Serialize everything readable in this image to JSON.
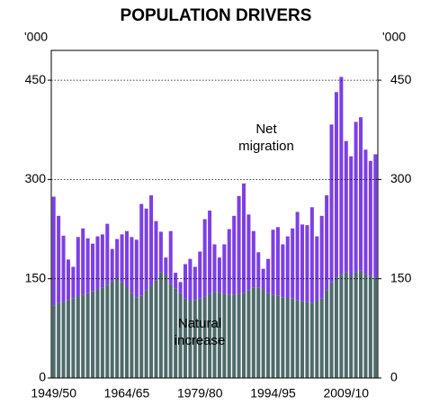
{
  "chart_data": {
    "type": "stacked_bar",
    "title": "POPULATION DRIVERS",
    "y_unit": "'000",
    "categories": [
      "1949/50",
      null,
      null,
      null,
      null,
      null,
      null,
      null,
      null,
      null,
      null,
      null,
      null,
      null,
      null,
      "1964/65",
      null,
      null,
      null,
      null,
      null,
      null,
      null,
      null,
      null,
      null,
      null,
      null,
      null,
      null,
      "1979/80",
      null,
      null,
      null,
      null,
      null,
      null,
      null,
      null,
      null,
      null,
      null,
      null,
      null,
      null,
      "1994/95",
      null,
      null,
      null,
      null,
      null,
      null,
      null,
      null,
      null,
      null,
      null,
      null,
      null,
      null,
      "2009/10",
      null,
      null,
      null,
      null,
      null,
      null
    ],
    "series": [
      {
        "name": "Natural increase",
        "color": "#4f6b6b",
        "values": [
          110,
          113,
          115,
          118,
          120,
          123,
          126,
          128,
          131,
          134,
          137,
          141,
          146,
          150,
          145,
          138,
          128,
          122,
          124,
          133,
          140,
          148,
          160,
          155,
          142,
          135,
          128,
          120,
          117,
          118,
          120,
          123,
          127,
          130,
          129,
          127,
          126,
          126,
          127,
          128,
          133,
          137,
          137,
          134,
          128,
          126,
          124,
          122,
          121,
          120,
          118,
          116,
          115,
          114,
          117,
          120,
          133,
          145,
          152,
          156,
          160,
          155,
          160,
          162,
          157,
          154,
          152
        ]
      },
      {
        "name": "Net migration",
        "color": "#7c3fe6",
        "values": [
          164,
          132,
          100,
          61,
          48,
          90,
          100,
          83,
          72,
          80,
          80,
          92,
          49,
          60,
          72,
          84,
          85,
          87,
          139,
          123,
          136,
          89,
          61,
          27,
          80,
          24,
          17,
          52,
          63,
          50,
          71,
          117,
          126,
          72,
          53,
          75,
          99,
          119,
          148,
          166,
          114,
          85,
          53,
          31,
          52,
          98,
          104,
          80,
          93,
          106,
          133,
          116,
          116,
          144,
          97,
          125,
          143,
          238,
          280,
          299,
          198,
          180,
          227,
          232,
          188,
          174,
          186
        ]
      }
    ],
    "annotations": [
      [
        "Net",
        "migration"
      ],
      [
        "Natural",
        "increase"
      ]
    ],
    "ylim": [
      0,
      495
    ],
    "yticks": [
      0,
      150,
      300,
      450
    ],
    "grid": true
  }
}
